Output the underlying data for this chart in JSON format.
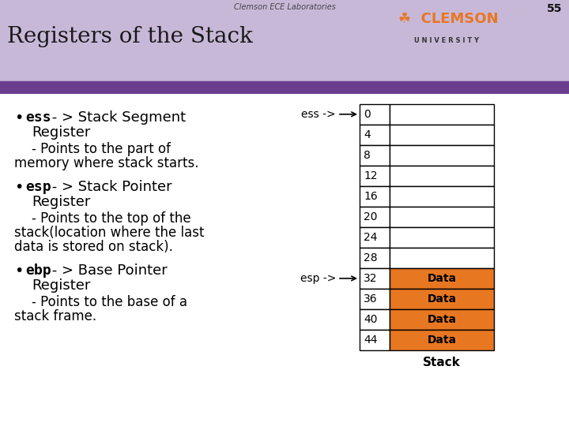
{
  "title_top": "Clemson ECE Laboratories",
  "slide_number": "55",
  "header_title": "Registers of the Stack",
  "header_bg": "#c8b8d8",
  "header_purple": "#6a3d8f",
  "bg_color": "#ffffff",
  "orange": "#e87722",
  "text_color": "#000000",
  "stack_rows": [
    0,
    4,
    8,
    12,
    16,
    20,
    24,
    28,
    32,
    36,
    40,
    44
  ],
  "data_rows": [
    32,
    36,
    40,
    44
  ],
  "ess_row": 0,
  "esp_row": 32,
  "stack_label": "Stack"
}
